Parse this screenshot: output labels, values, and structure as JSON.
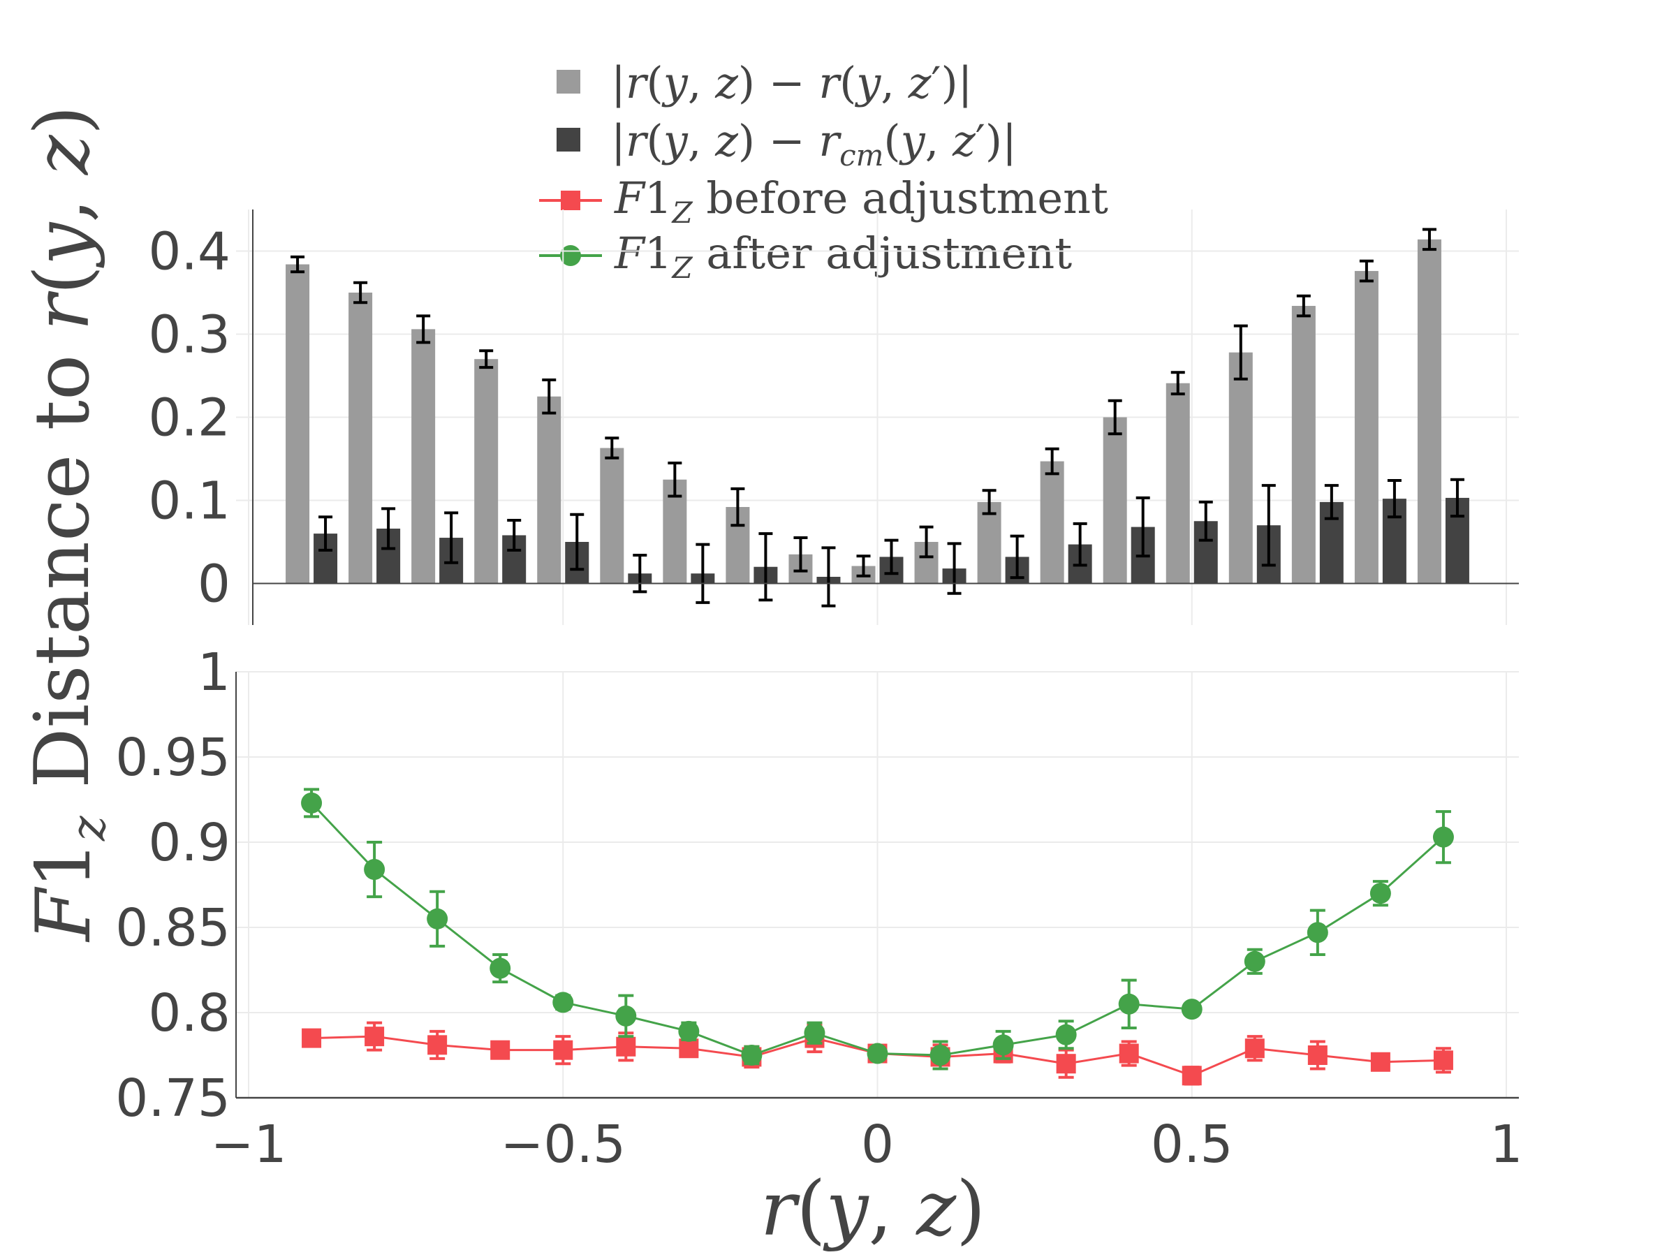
{
  "colors": {
    "bar_light": "#9b9b9b",
    "bar_dark": "#434343",
    "error": "#000000",
    "red": "#f44a4f",
    "green": "#44a349",
    "grid": "#ebebeb",
    "axis": "#444444"
  },
  "chart_data": [
    {
      "type": "bar",
      "panel": "top",
      "ylabel": "Distance to r(y, z)",
      "ylim": [
        -0.05,
        0.45
      ],
      "yticks": [
        0,
        0.1,
        0.2,
        0.3,
        0.4
      ],
      "ytick_labels": [
        "0",
        "0.1",
        "0.2",
        "0.3",
        "0.4"
      ],
      "x": [
        -0.9,
        -0.8,
        -0.7,
        -0.6,
        -0.5,
        -0.4,
        -0.3,
        -0.2,
        -0.1,
        0,
        0.1,
        0.2,
        0.3,
        0.4,
        0.5,
        0.6,
        0.7,
        0.8,
        0.9
      ],
      "series": [
        {
          "name": "|r(y, z) − r(y, z′)|",
          "values": [
            0.384,
            0.35,
            0.306,
            0.27,
            0.225,
            0.163,
            0.125,
            0.092,
            0.035,
            0.021,
            0.05,
            0.098,
            0.147,
            0.2,
            0.241,
            0.278,
            0.334,
            0.376,
            0.414
          ],
          "errors": [
            0.009,
            0.012,
            0.016,
            0.01,
            0.02,
            0.012,
            0.02,
            0.022,
            0.02,
            0.012,
            0.018,
            0.014,
            0.015,
            0.02,
            0.013,
            0.032,
            0.012,
            0.012,
            0.012
          ]
        },
        {
          "name": "|r(y, z) − r_cm(y, z′)|",
          "values": [
            0.06,
            0.066,
            0.055,
            0.058,
            0.05,
            0.012,
            0.012,
            0.02,
            0.008,
            0.032,
            0.018,
            0.032,
            0.047,
            0.068,
            0.075,
            0.07,
            0.098,
            0.102,
            0.103
          ],
          "errors": [
            0.02,
            0.024,
            0.03,
            0.018,
            0.033,
            0.022,
            0.035,
            0.04,
            0.035,
            0.02,
            0.03,
            0.025,
            0.025,
            0.035,
            0.023,
            0.048,
            0.02,
            0.022,
            0.022
          ]
        }
      ]
    },
    {
      "type": "line",
      "panel": "bottom",
      "ylabel": "F1_z",
      "xlabel": "r(y, z)",
      "xlim": [
        -1.02,
        1.02
      ],
      "ylim": [
        0.75,
        1.0
      ],
      "yticks": [
        0.75,
        0.8,
        0.85,
        0.9,
        0.95,
        1
      ],
      "ytick_labels": [
        "0.75",
        "0.8",
        "0.85",
        "0.9",
        "0.95",
        "1"
      ],
      "xticks": [
        -1,
        -0.5,
        0,
        0.5,
        1
      ],
      "xtick_labels": [
        "−1",
        "−0.5",
        "0",
        "0.5",
        "1"
      ],
      "x": [
        -0.9,
        -0.8,
        -0.7,
        -0.6,
        -0.5,
        -0.4,
        -0.3,
        -0.2,
        -0.1,
        0,
        0.1,
        0.2,
        0.3,
        0.4,
        0.5,
        0.6,
        0.7,
        0.8,
        0.9
      ],
      "series": [
        {
          "name": "F1_Z before adjustment",
          "marker": "square",
          "values": [
            0.785,
            0.786,
            0.781,
            0.778,
            0.778,
            0.78,
            0.779,
            0.774,
            0.785,
            0.776,
            0.774,
            0.776,
            0.77,
            0.776,
            0.763,
            0.779,
            0.775,
            0.771,
            0.772
          ],
          "errors": [
            0.004,
            0.008,
            0.008,
            0.003,
            0.008,
            0.008,
            0.004,
            0.006,
            0.008,
            0.004,
            0.007,
            0.005,
            0.008,
            0.007,
            0.005,
            0.007,
            0.008,
            0.004,
            0.007
          ]
        },
        {
          "name": "F1_Z after adjustment",
          "marker": "circle",
          "values": [
            0.923,
            0.884,
            0.855,
            0.826,
            0.806,
            0.798,
            0.789,
            0.775,
            0.788,
            0.776,
            0.775,
            0.781,
            0.787,
            0.805,
            0.802,
            0.83,
            0.847,
            0.87,
            0.903
          ],
          "errors": [
            0.008,
            0.016,
            0.016,
            0.008,
            0.004,
            0.012,
            0.005,
            0.005,
            0.006,
            0.003,
            0.008,
            0.008,
            0.008,
            0.014,
            0.003,
            0.007,
            0.013,
            0.007,
            0.015
          ]
        }
      ]
    }
  ],
  "legend": {
    "position": "top-center",
    "entries": [
      "|r(y, z) − r(y, z′)|",
      "|r(y, z) − r_cm(y, z′)|",
      "F1_Z before adjustment",
      "F1_Z after adjustment"
    ]
  }
}
